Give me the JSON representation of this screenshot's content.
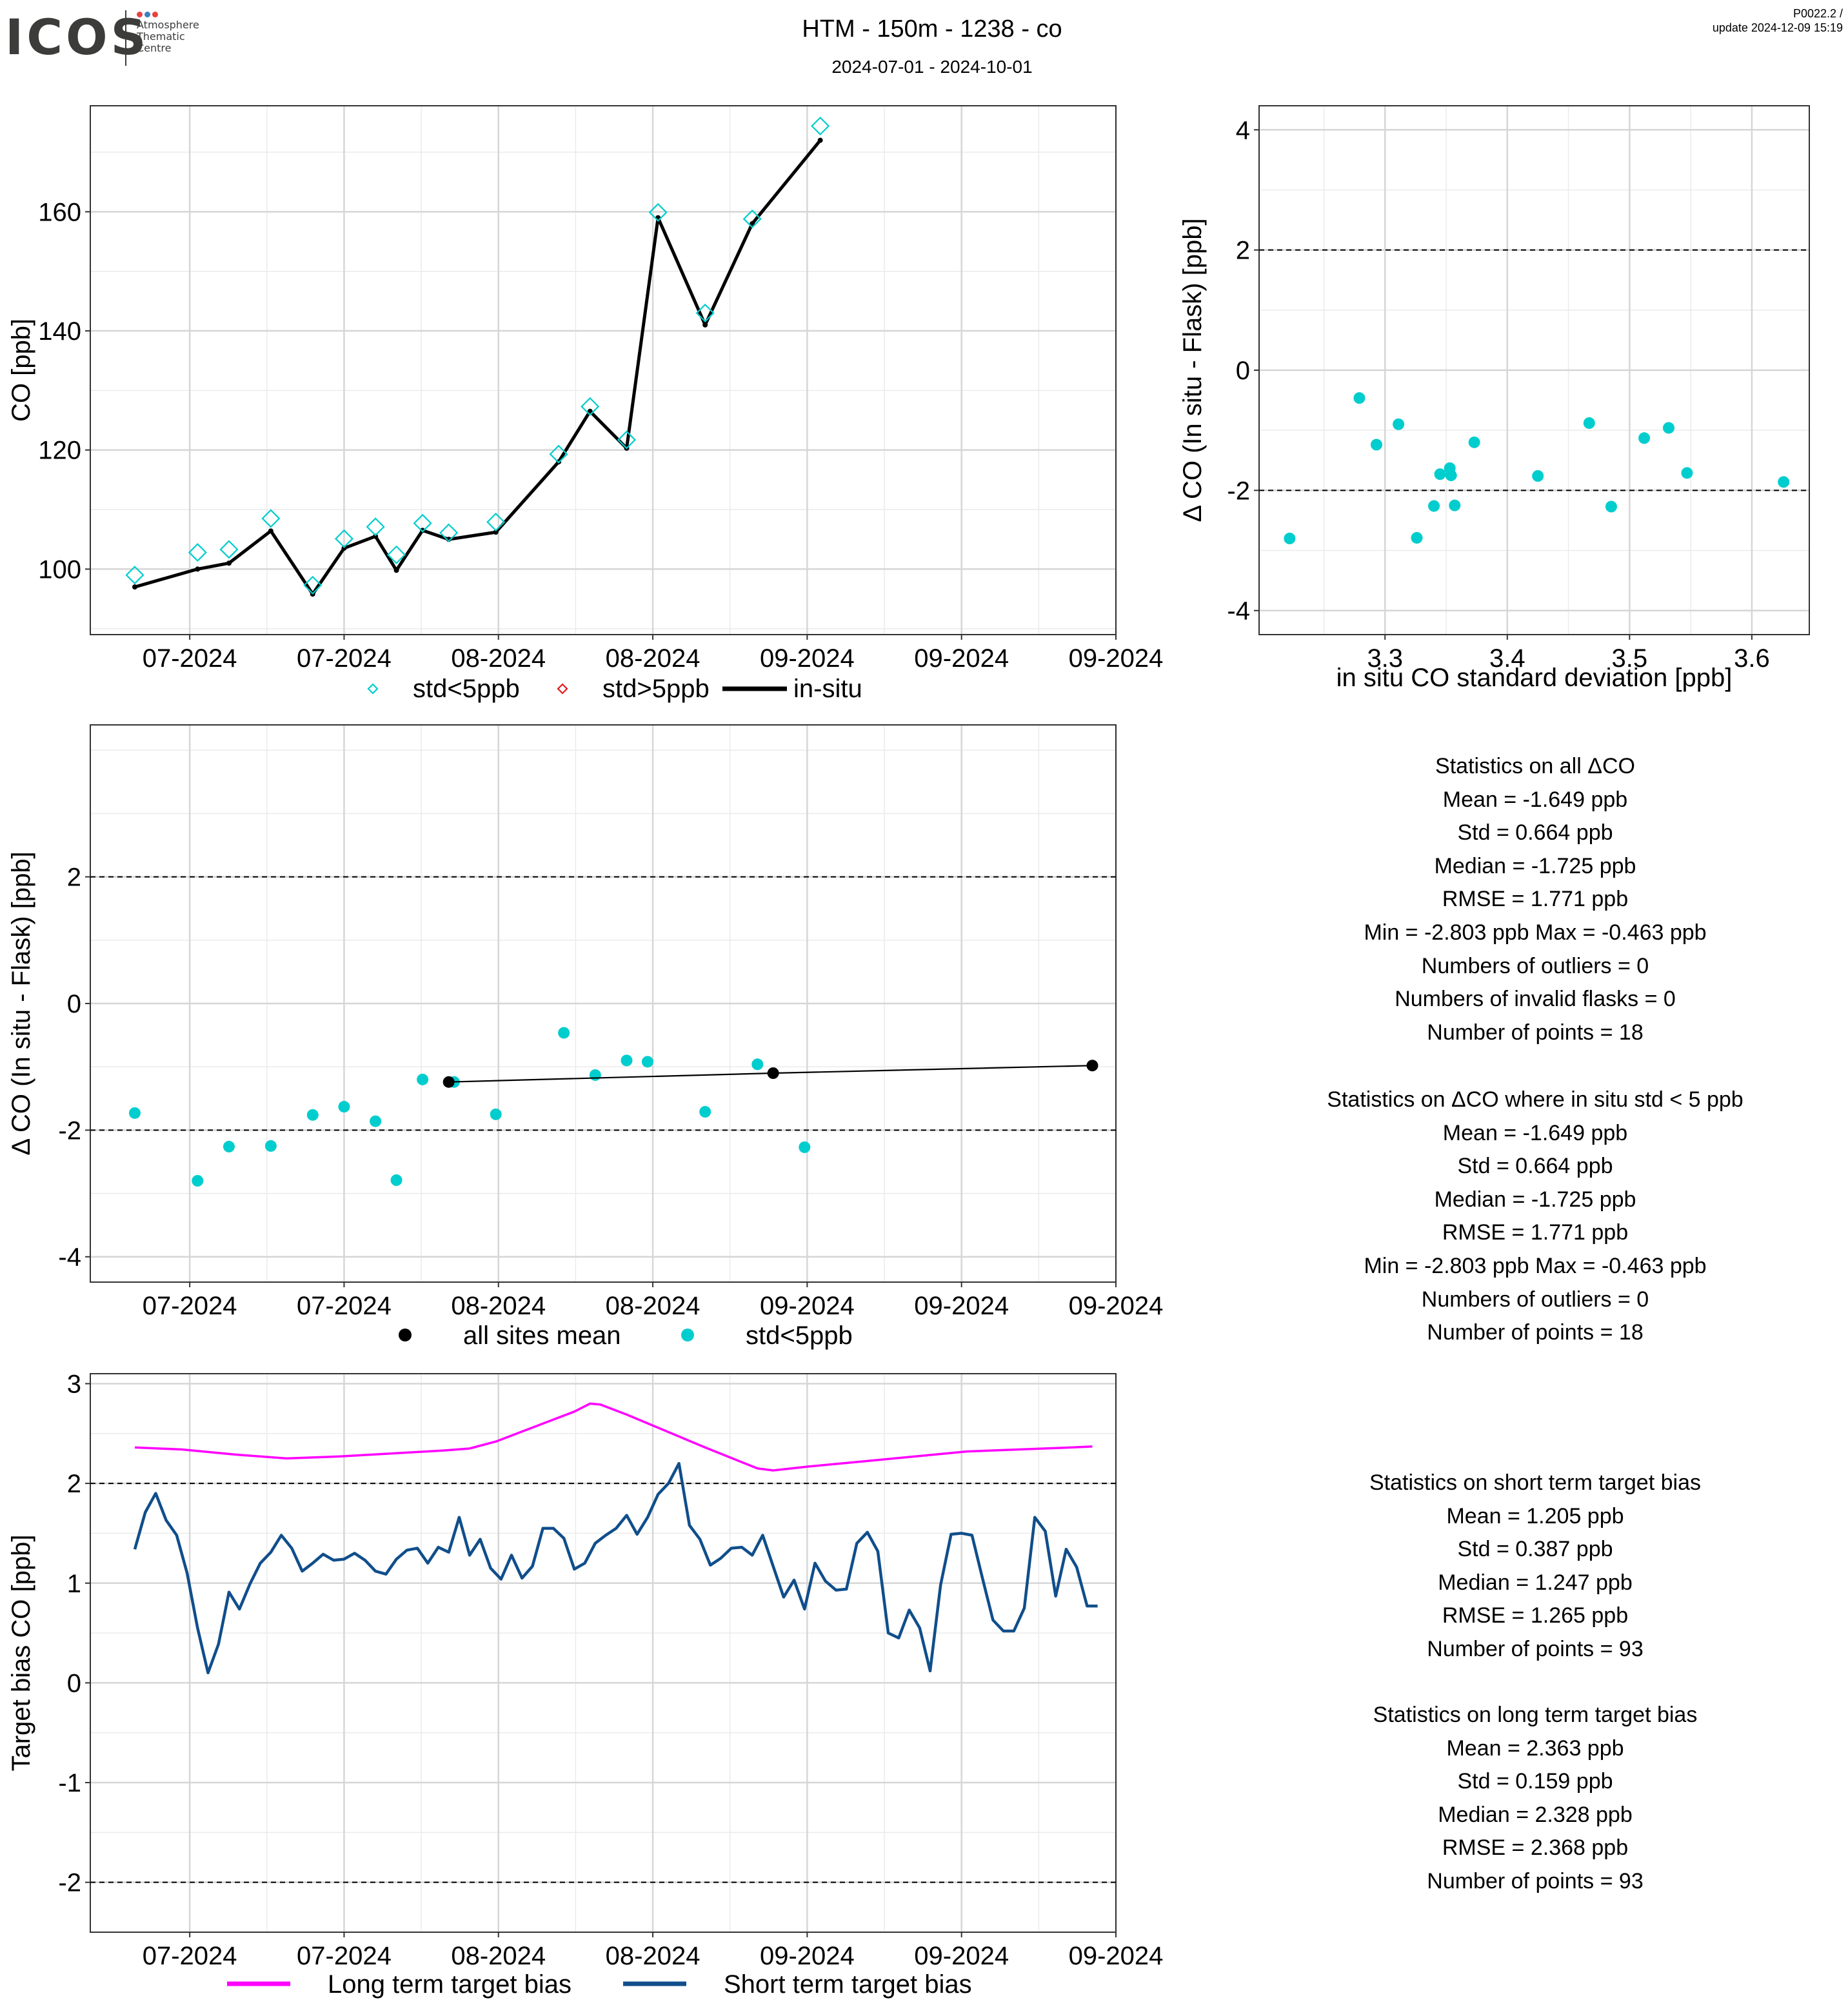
{
  "header": {
    "logo": "ICOS",
    "logo_sub": [
      "Atmosphere",
      "Thematic",
      "Centre"
    ],
    "title": "HTM - 150m - 1238 - co",
    "subtitle": "2024-07-01 - 2024-10-01",
    "version_line1": "P0022.2 /",
    "version_line2": "update  2024-12-09 15:19"
  },
  "colors": {
    "cyan": "#00CDCD",
    "red": "#E41A1C",
    "black": "#000000",
    "magenta": "#FF00FF",
    "navy": "#104E8B",
    "logo_dots": [
      "#e8423f",
      "#3a7fc3",
      "#e8423f"
    ]
  },
  "legends": {
    "panel1": [
      "std<5ppb",
      "std>5ppb",
      "in-situ"
    ],
    "panel3": [
      "all sites mean",
      "std<5ppb"
    ],
    "panel5": [
      "Long term target bias",
      "Short term target bias"
    ]
  },
  "chart_data": [
    {
      "type": "line",
      "ylabel": "CO [ppb]",
      "ylim": [
        89,
        177.8
      ],
      "yticks": [
        100,
        120,
        140,
        160
      ],
      "x_tick_labels": [
        "07-2024",
        "07-2024",
        "08-2024",
        "08-2024",
        "09-2024",
        "09-2024",
        "09-2024"
      ],
      "series": [
        {
          "name": "in-situ",
          "x": [
            1,
            13,
            19,
            27,
            35,
            41,
            47,
            51,
            56,
            61,
            70,
            82,
            88,
            95,
            101,
            110,
            119,
            132
          ],
          "y": [
            97,
            100,
            101,
            106.4,
            95.8,
            103.5,
            105.5,
            99.8,
            106.5,
            105,
            106.2,
            118,
            126.5,
            120.3,
            159,
            141,
            158,
            172
          ]
        },
        {
          "name": "std<5ppb",
          "x": [
            1,
            13,
            19,
            27,
            35,
            41,
            47,
            51,
            56,
            61,
            70,
            82,
            88,
            95,
            101,
            110,
            119,
            132
          ],
          "y": [
            99,
            102.8,
            103.3,
            108.5,
            97.3,
            105.1,
            107.1,
            102.4,
            107.7,
            106.1,
            107.9,
            119.3,
            127.3,
            121.7,
            159.9,
            143,
            158.8,
            174.4
          ]
        }
      ]
    },
    {
      "type": "scatter",
      "xlabel": "in situ CO standard deviation [ppb]",
      "ylabel": "Δ CO (In situ - Flask) [ppb]",
      "xlim": [
        3.197,
        3.647
      ],
      "ylim": [
        -4.4,
        4.4
      ],
      "xticks": [
        3.3,
        3.4,
        3.5,
        3.6
      ],
      "yticks": [
        -4,
        -2,
        0,
        2,
        4
      ],
      "hlines": [
        -2,
        2
      ],
      "series": [
        {
          "name": "std<5ppb",
          "x": [
            3.222,
            3.279,
            3.293,
            3.311,
            3.326,
            3.34,
            3.345,
            3.353,
            3.354,
            3.357,
            3.373,
            3.425,
            3.467,
            3.485,
            3.512,
            3.532,
            3.547,
            3.626
          ],
          "y": [
            -2.8,
            -0.463,
            -1.24,
            -0.9,
            -2.79,
            -2.26,
            -1.73,
            -1.63,
            -1.75,
            -2.25,
            -1.2,
            -1.76,
            -0.88,
            -2.27,
            -1.13,
            -0.96,
            -1.71,
            -1.86
          ]
        }
      ]
    },
    {
      "type": "scatter",
      "ylabel": "Δ CO (In situ - Flask) [ppb]",
      "ylim": [
        -4.4,
        4.4
      ],
      "yticks": [
        -4,
        -2,
        0,
        2
      ],
      "hlines": [
        -2,
        2
      ],
      "x_tick_labels": [
        "07-2024",
        "07-2024",
        "08-2024",
        "08-2024",
        "09-2024",
        "09-2024",
        "09-2024"
      ],
      "series": [
        {
          "name": "std<5ppb",
          "x": [
            1,
            13,
            19,
            27,
            35,
            41,
            47,
            51,
            56,
            62,
            70,
            83,
            89,
            95,
            99,
            110,
            120,
            129
          ],
          "y": [
            -1.73,
            -2.8,
            -2.26,
            -2.25,
            -1.76,
            -1.63,
            -1.86,
            -2.79,
            -1.2,
            -1.24,
            -1.75,
            -0.463,
            -1.13,
            -0.9,
            -0.92,
            -1.71,
            -0.96,
            -2.27
          ]
        },
        {
          "name": "all sites mean",
          "x": [
            61,
            123,
            184
          ],
          "y": [
            -1.24,
            -1.1,
            -0.98
          ]
        }
      ]
    },
    {
      "type": "line",
      "ylabel": "Target bias CO [ppb]",
      "ylim": [
        -2.5,
        3.1
      ],
      "yticks": [
        -2,
        -1,
        0,
        1,
        2,
        3
      ],
      "hlines": [
        -2,
        2
      ],
      "x_tick_labels": [
        "07-2024",
        "07-2024",
        "08-2024",
        "08-2024",
        "09-2024",
        "09-2024",
        "09-2024"
      ],
      "series": [
        {
          "name": "Long term target bias",
          "x": [
            1,
            10,
            20,
            30,
            40,
            50,
            60,
            65,
            70,
            75,
            80,
            85,
            88,
            90,
            95,
            100,
            110,
            120,
            123,
            130,
            140,
            150,
            160,
            170,
            180,
            184
          ],
          "y": [
            2.36,
            2.34,
            2.29,
            2.25,
            2.27,
            2.3,
            2.33,
            2.35,
            2.42,
            2.52,
            2.62,
            2.72,
            2.8,
            2.79,
            2.69,
            2.58,
            2.36,
            2.15,
            2.13,
            2.17,
            2.22,
            2.27,
            2.32,
            2.34,
            2.36,
            2.37
          ]
        },
        {
          "name": "Short term target bias",
          "x": [
            1,
            3,
            5,
            7,
            9,
            11,
            13,
            15,
            17,
            19,
            21,
            23,
            25,
            27,
            29,
            31,
            33,
            35,
            37,
            39,
            41,
            43,
            45,
            47,
            49,
            51,
            53,
            55,
            57,
            59,
            61,
            63,
            65,
            67,
            69,
            71,
            73,
            75,
            77,
            79,
            81,
            83,
            85,
            87,
            89,
            91,
            93,
            95,
            97,
            99,
            101,
            103,
            105,
            107,
            109,
            111,
            113,
            115,
            117,
            119,
            121,
            123,
            125,
            127,
            129,
            131,
            133,
            135,
            137,
            139,
            141,
            143,
            145,
            147,
            149,
            151,
            153,
            155,
            157,
            159,
            161,
            163,
            165,
            167,
            169,
            171,
            173,
            175,
            177,
            179,
            181,
            183,
            185
          ],
          "y": [
            1.34,
            1.71,
            1.9,
            1.63,
            1.48,
            1.1,
            0.55,
            0.1,
            0.39,
            0.91,
            0.74,
            0.99,
            1.2,
            1.31,
            1.48,
            1.35,
            1.12,
            1.2,
            1.29,
            1.23,
            1.24,
            1.3,
            1.23,
            1.12,
            1.09,
            1.24,
            1.33,
            1.35,
            1.2,
            1.36,
            1.31,
            1.66,
            1.28,
            1.44,
            1.15,
            1.04,
            1.28,
            1.05,
            1.17,
            1.55,
            1.55,
            1.45,
            1.14,
            1.2,
            1.4,
            1.48,
            1.55,
            1.68,
            1.49,
            1.66,
            1.89,
            2.0,
            2.2,
            1.58,
            1.44,
            1.18,
            1.25,
            1.35,
            1.36,
            1.28,
            1.48,
            1.17,
            0.86,
            1.03,
            0.74,
            1.2,
            1.02,
            0.93,
            0.94,
            1.4,
            1.51,
            1.32,
            0.5,
            0.45,
            0.73,
            0.55,
            0.12,
            0.98,
            1.49,
            1.5,
            1.48,
            1.05,
            0.63,
            0.52,
            0.52,
            0.75,
            1.66,
            1.52,
            0.87,
            1.34,
            1.16,
            0.77,
            0.77
          ]
        }
      ]
    }
  ],
  "stats": {
    "block1": [
      "Statistics on all ΔCO",
      "Mean =  -1.649 ppb",
      "Std =  0.664 ppb",
      "Median =  -1.725 ppb",
      "RMSE =  1.771 ppb",
      "Min =  -2.803 ppb Max =  -0.463 ppb",
      "Numbers of outliers =  0",
      "Numbers of invalid flasks =  0",
      "Number of points =  18"
    ],
    "block2": [
      "Statistics on ΔCO where in situ std < 5 ppb",
      "Mean =  -1.649 ppb",
      "Std =  0.664 ppb",
      "Median =  -1.725 ppb",
      "RMSE =  1.771 ppb",
      "Min =  -2.803 ppb Max =  -0.463 ppb",
      "Numbers of outliers =  0",
      "Number of points =  18"
    ],
    "block3": [
      "Statistics on short term target bias",
      "Mean =  1.205 ppb",
      "Std =  0.387 ppb",
      "Median =  1.247 ppb",
      "RMSE =  1.265 ppb",
      "Number of points =  93"
    ],
    "block4": [
      "Statistics on long term target bias",
      "Mean =  2.363 ppb",
      "Std =  0.159 ppb",
      "Median =  2.328 ppb",
      "RMSE =  2.368 ppb",
      "Number of points =  93"
    ]
  }
}
